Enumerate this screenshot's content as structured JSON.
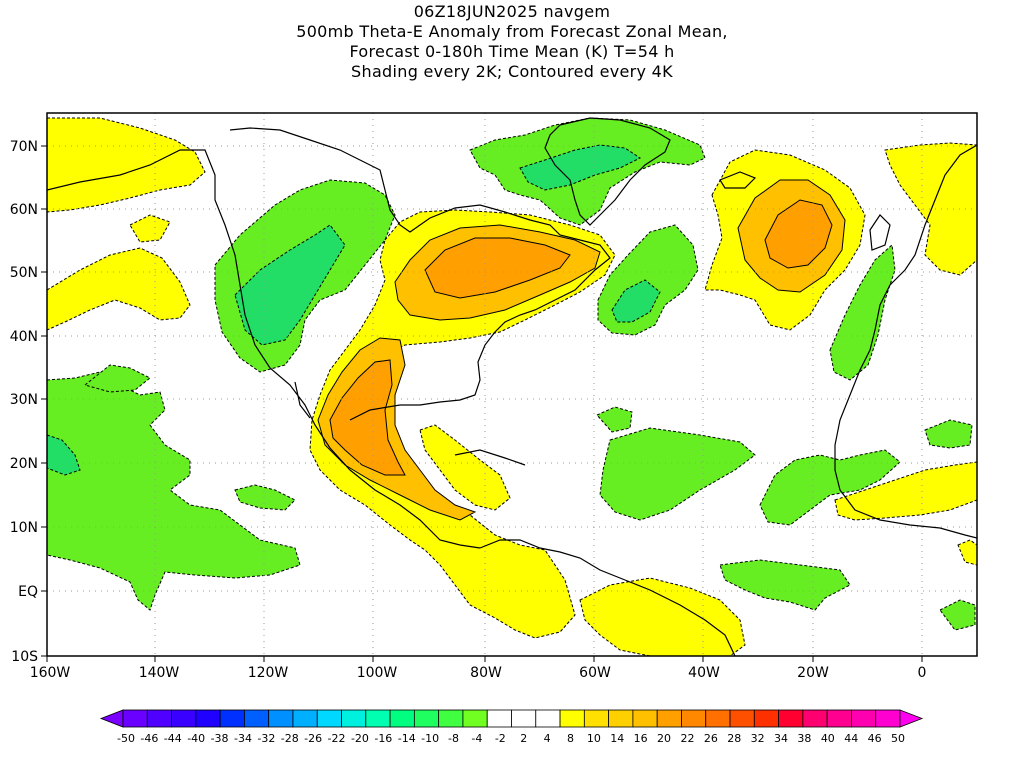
{
  "title": {
    "line1": "06Z18JUN2025 navgem",
    "line2": "500mb Theta-E Anomaly from Forecast Zonal Mean,",
    "line3": "Forecast 0-180h Time Mean (K) T=54 h",
    "line4": "Shading every 2K; Contoured every 4K"
  },
  "axes": {
    "x_ticks": [
      "160W",
      "140W",
      "120W",
      "100W",
      "80W",
      "60W",
      "40W",
      "20W",
      "0"
    ],
    "y_ticks": [
      "70N",
      "60N",
      "50N",
      "40N",
      "30N",
      "20N",
      "10N",
      "EQ",
      "10S"
    ]
  },
  "colorbar": {
    "labels": [
      "-50",
      "-46",
      "-44",
      "-40",
      "-38",
      "-34",
      "-32",
      "-28",
      "-26",
      "-22",
      "-20",
      "-16",
      "-14",
      "-10",
      "-8",
      "-4",
      "-2",
      "2",
      "4",
      "8",
      "10",
      "14",
      "16",
      "20",
      "22",
      "26",
      "28",
      "32",
      "34",
      "38",
      "40",
      "44",
      "46",
      "50"
    ],
    "colors": [
      "#7a00ff",
      "#6a00ff",
      "#5000ff",
      "#3a00ff",
      "#2000ff",
      "#0030ff",
      "#0060ff",
      "#0090ff",
      "#00b0ff",
      "#00d8ff",
      "#00f0e0",
      "#00ffb0",
      "#00ff80",
      "#20ff60",
      "#40ff40",
      "#70ff20",
      "#ffffff",
      "#ffffff",
      "#ffffff",
      "#ffff00",
      "#ffe000",
      "#ffd000",
      "#ffc000",
      "#ffa000",
      "#ff8800",
      "#ff7000",
      "#ff5000",
      "#ff3000",
      "#ff0030",
      "#ff0070",
      "#ff0090",
      "#ff00b0",
      "#ff00d0",
      "#ff00f0"
    ]
  }
}
